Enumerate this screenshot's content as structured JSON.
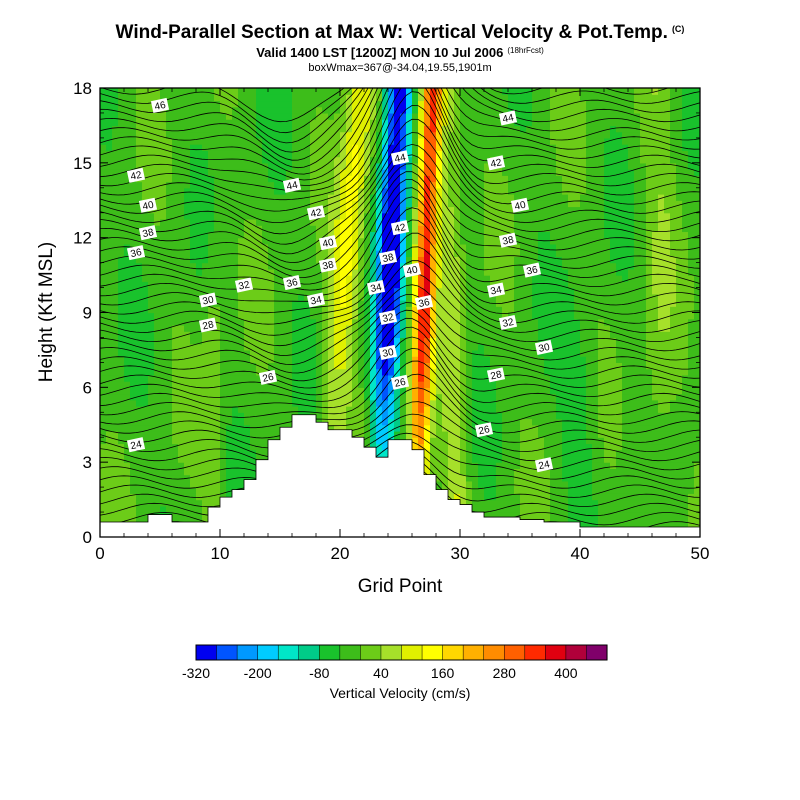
{
  "title": {
    "main": "Wind-Parallel Section at Max W: Vertical Velocity & Pot.Temp.",
    "main_tag": "(C)",
    "valid": "Valid 1400 LST [1200Z] MON 10 Jul 2006",
    "valid_tag": "(18hrFcst)",
    "box": "boxWmax=367@-34.04,19.55,1901m"
  },
  "chart_data": {
    "type": "heatmap",
    "xlabel": "Grid Point",
    "ylabel": "Height (Kft MSL)",
    "xlim": [
      0,
      50
    ],
    "ylim": [
      0,
      18
    ],
    "xticks": [
      0,
      10,
      20,
      30,
      40,
      50
    ],
    "yticks": [
      0,
      3,
      6,
      9,
      12,
      15,
      18
    ],
    "colorbar": {
      "label": "Vertical Velocity (cm/s)",
      "tick_labels": [
        "-320",
        "-200",
        "-80",
        "40",
        "160",
        "280",
        "400"
      ],
      "tick_values": [
        -320,
        -200,
        -80,
        40,
        160,
        280,
        400
      ],
      "bin_edges": [
        -320,
        -280,
        -240,
        -200,
        -160,
        -120,
        -80,
        -40,
        0,
        40,
        80,
        120,
        160,
        200,
        240,
        280,
        320,
        360,
        400,
        440,
        480
      ],
      "colors": [
        "#0000f0",
        "#0055ff",
        "#0099ff",
        "#00ccff",
        "#00e6c8",
        "#00cc88",
        "#19c22c",
        "#3dbd1a",
        "#6ccc18",
        "#a6e02a",
        "#e0f000",
        "#ffff00",
        "#ffd700",
        "#ffb000",
        "#ff8c00",
        "#ff6000",
        "#ff2a00",
        "#e00010",
        "#b0003a",
        "#80006a"
      ]
    },
    "terrain": {
      "x": [
        0,
        1,
        2,
        3,
        4,
        5,
        6,
        7,
        8,
        9,
        10,
        11,
        12,
        13,
        14,
        15,
        16,
        17,
        18,
        19,
        20,
        21,
        22,
        23,
        24,
        25,
        26,
        27,
        28,
        29,
        30,
        31,
        32,
        33,
        34,
        35,
        36,
        37,
        38,
        39,
        40,
        41,
        42,
        43,
        44,
        45,
        46,
        47,
        48,
        49,
        50
      ],
      "height_kft": [
        0.6,
        0.6,
        0.6,
        0.6,
        0.9,
        0.9,
        0.6,
        0.6,
        0.6,
        1.2,
        1.6,
        1.9,
        2.3,
        3.1,
        3.9,
        4.4,
        4.9,
        4.9,
        4.6,
        4.3,
        4.3,
        4.0,
        3.6,
        3.2,
        3.9,
        3.9,
        3.5,
        2.5,
        1.9,
        1.5,
        1.3,
        1.0,
        0.8,
        0.8,
        0.8,
        0.7,
        0.7,
        0.6,
        0.6,
        0.6,
        0.4,
        0.4,
        0.4,
        0.4,
        0.4,
        0.4,
        0.4,
        0.4,
        0.4,
        0.4,
        0.4
      ]
    },
    "updraft_core": {
      "x_center": 27,
      "w_max": 367
    },
    "downdraft_core": {
      "x_center": 24
    },
    "contour_labels": [
      {
        "text": "46",
        "x": 5,
        "y": 17.3
      },
      {
        "text": "42",
        "x": 3,
        "y": 14.5
      },
      {
        "text": "40",
        "x": 4,
        "y": 13.3
      },
      {
        "text": "38",
        "x": 4,
        "y": 12.2
      },
      {
        "text": "36",
        "x": 3,
        "y": 11.4
      },
      {
        "text": "30",
        "x": 9,
        "y": 9.5
      },
      {
        "text": "28",
        "x": 9,
        "y": 8.5
      },
      {
        "text": "24",
        "x": 3,
        "y": 3.7
      },
      {
        "text": "44",
        "x": 16,
        "y": 14.1
      },
      {
        "text": "42",
        "x": 18,
        "y": 13.0
      },
      {
        "text": "40",
        "x": 19,
        "y": 11.8
      },
      {
        "text": "38",
        "x": 19,
        "y": 10.9
      },
      {
        "text": "36",
        "x": 16,
        "y": 10.2
      },
      {
        "text": "32",
        "x": 12,
        "y": 10.1
      },
      {
        "text": "34",
        "x": 18,
        "y": 9.5
      },
      {
        "text": "26",
        "x": 14,
        "y": 6.4
      },
      {
        "text": "44",
        "x": 25,
        "y": 15.2
      },
      {
        "text": "42",
        "x": 25,
        "y": 12.4
      },
      {
        "text": "38",
        "x": 24,
        "y": 11.2
      },
      {
        "text": "40",
        "x": 26,
        "y": 10.7
      },
      {
        "text": "34",
        "x": 23,
        "y": 10.0
      },
      {
        "text": "36",
        "x": 27,
        "y": 9.4
      },
      {
        "text": "32",
        "x": 24,
        "y": 8.8
      },
      {
        "text": "30",
        "x": 24,
        "y": 7.4
      },
      {
        "text": "26",
        "x": 25,
        "y": 6.2
      },
      {
        "text": "44",
        "x": 34,
        "y": 16.8
      },
      {
        "text": "42",
        "x": 33,
        "y": 15.0
      },
      {
        "text": "40",
        "x": 35,
        "y": 13.3
      },
      {
        "text": "38",
        "x": 34,
        "y": 11.9
      },
      {
        "text": "36",
        "x": 36,
        "y": 10.7
      },
      {
        "text": "34",
        "x": 33,
        "y": 9.9
      },
      {
        "text": "32",
        "x": 34,
        "y": 8.6
      },
      {
        "text": "30",
        "x": 37,
        "y": 7.6
      },
      {
        "text": "28",
        "x": 33,
        "y": 6.5
      },
      {
        "text": "26",
        "x": 32,
        "y": 4.3
      },
      {
        "text": "24",
        "x": 37,
        "y": 2.9
      }
    ]
  }
}
